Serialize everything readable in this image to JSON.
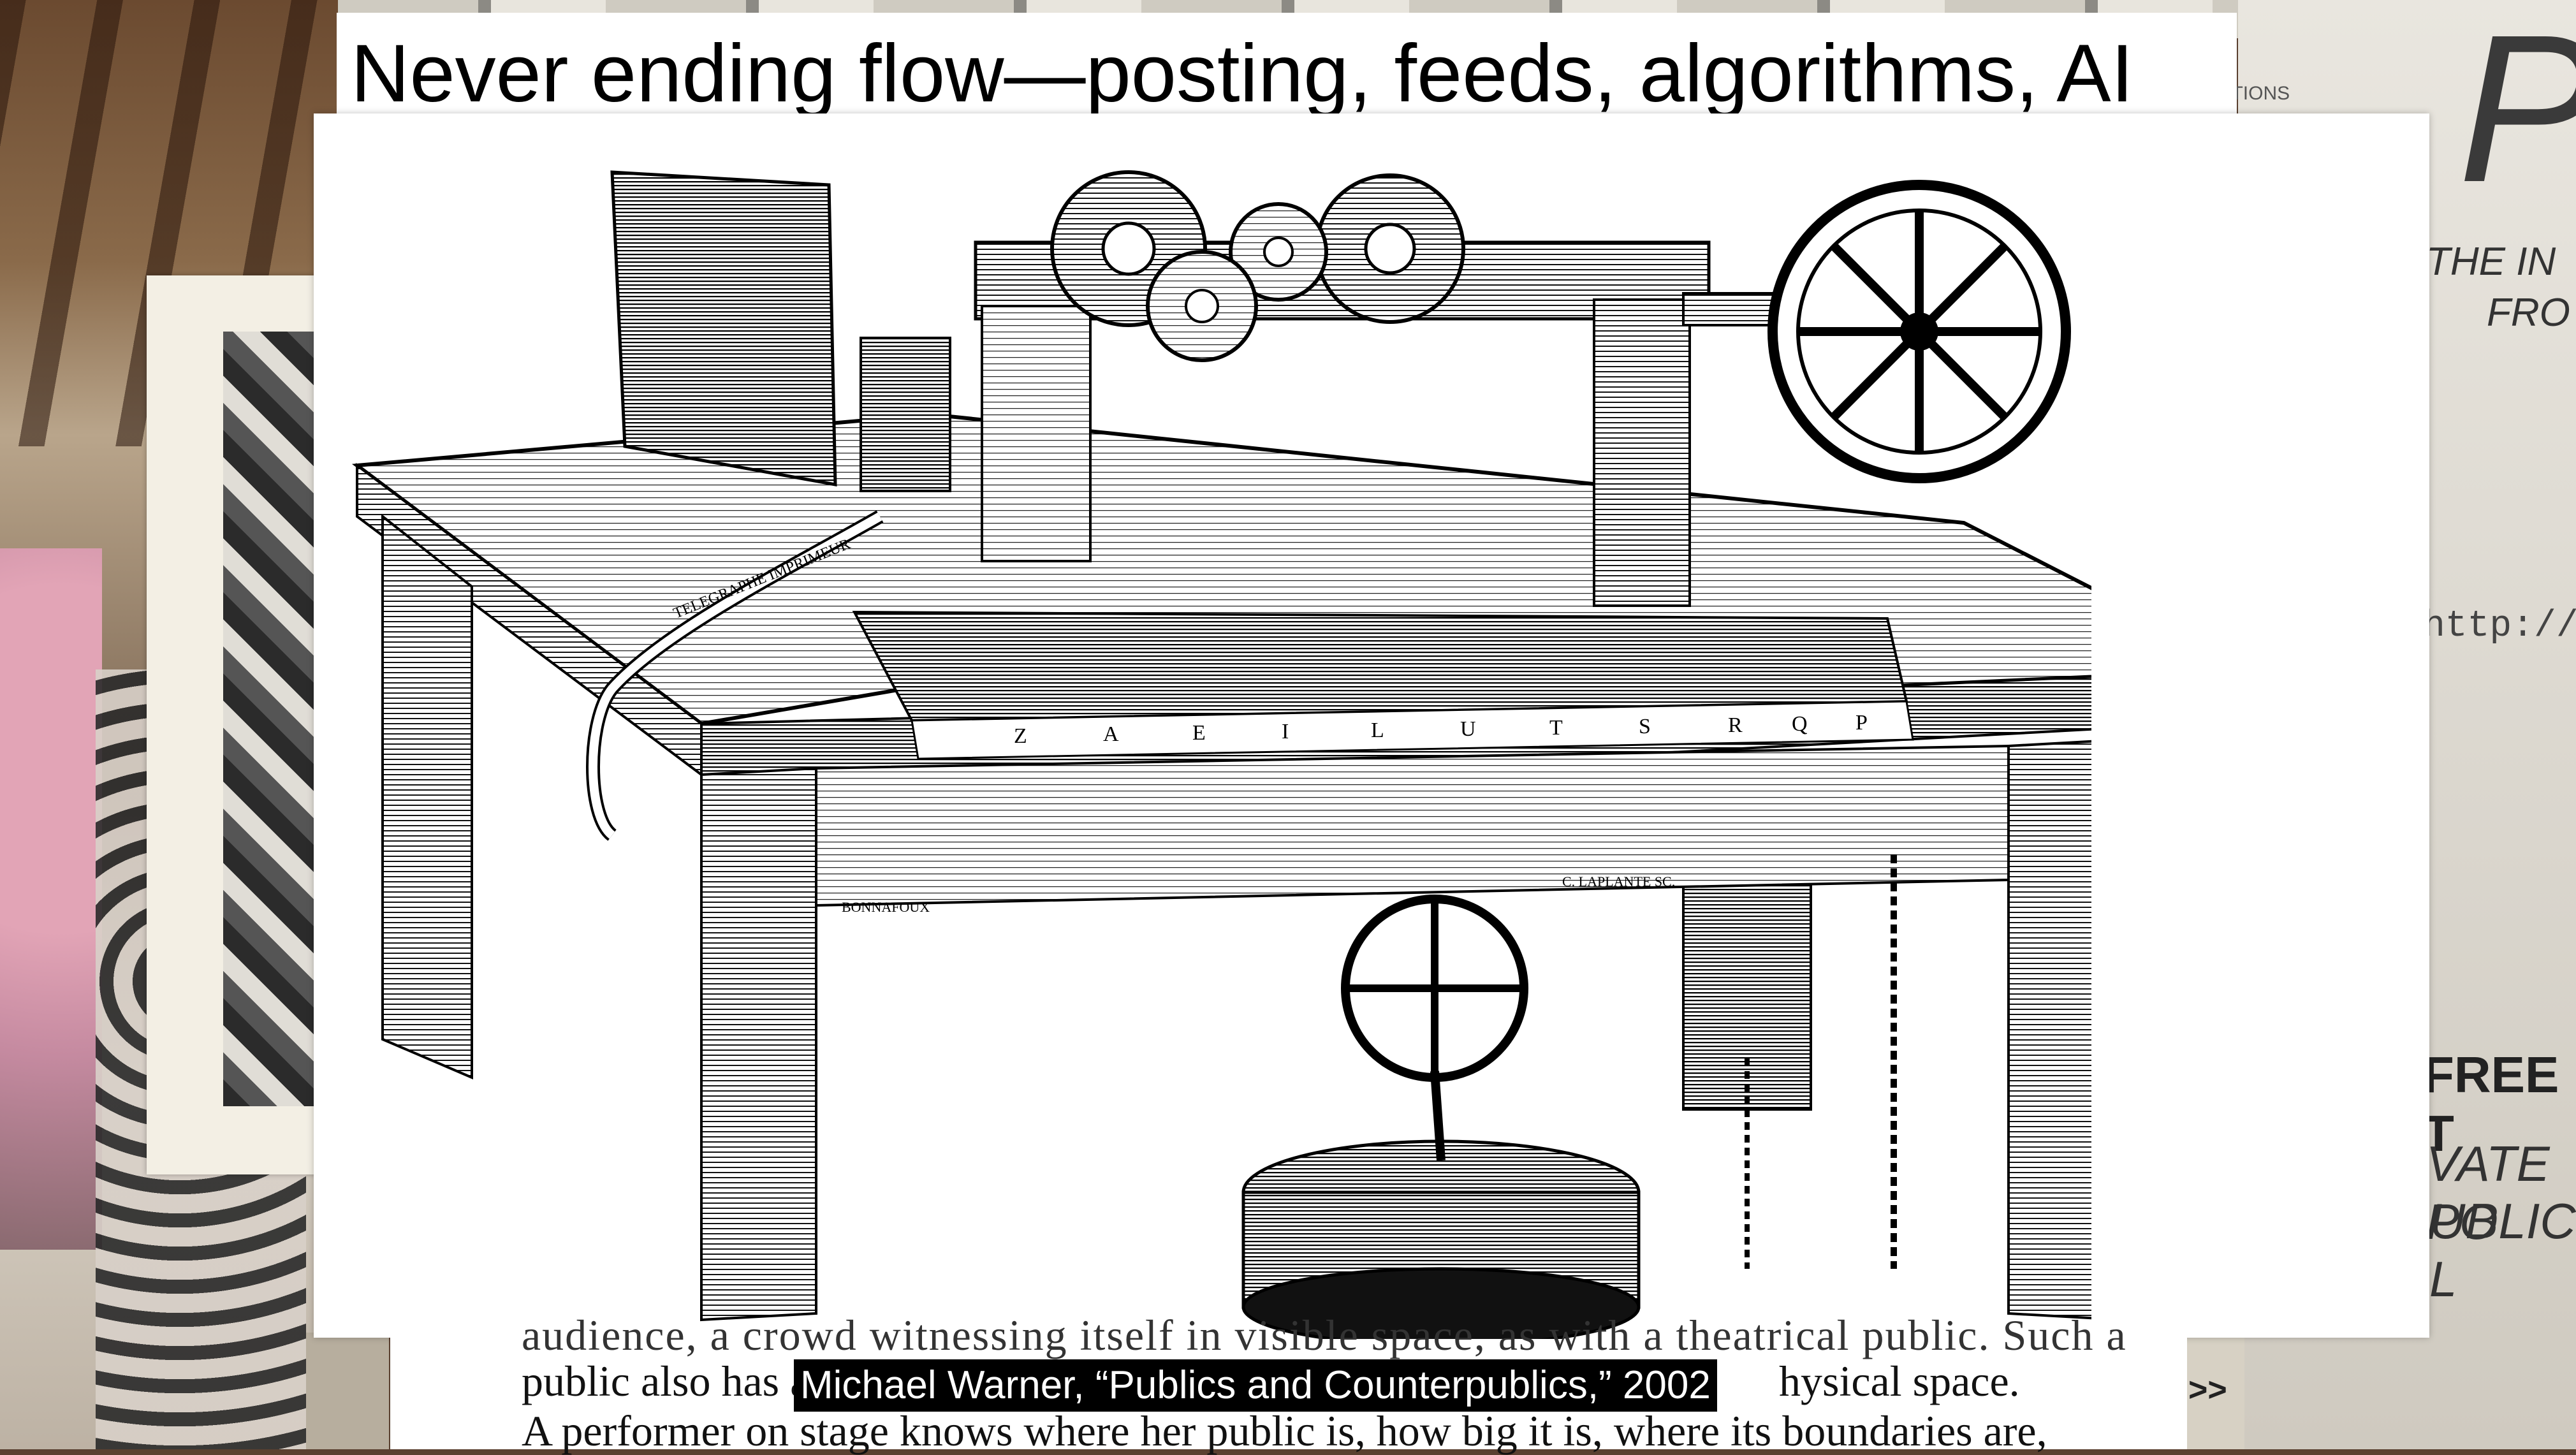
{
  "slide": {
    "title": "Never ending flow—posting, feeds, algorithms, AI"
  },
  "illustration": {
    "description_icon": "printing-telegraph-engraving-icon",
    "keyboard_letters": [
      "Z",
      "A",
      "E",
      "I",
      "L",
      "U",
      "T",
      "S",
      "R",
      "Q",
      "P"
    ],
    "engraver_left": "BONNAFOUX",
    "engraver_right": "C. LAPLANTE SC.",
    "paper_tape_text": "TELEGRAPHE IMPRIMEUR"
  },
  "book_text": {
    "line0": "audience, a crowd witnessing itself in visible space, as with a theatrical public. Such a",
    "line1_start": "public also has a",
    "line1_end": "hysical space.",
    "line2": "A performer on stage knows where her public is, how big it is, where its boundaries are,"
  },
  "caption": "Michael Warner, “Publics and Counterpublics,” 2002",
  "nav": {
    "next_label": ">>"
  },
  "background": {
    "poster_letter": "P",
    "poster_line1": "THE IN",
    "poster_line2": "FRO",
    "poster_url": "http://ww",
    "poster_free": "FREE T",
    "poster_private": "VATE PO",
    "poster_public": "UBLIC L",
    "top_text_nations": "NATIONS",
    "top_text_l": "L"
  }
}
